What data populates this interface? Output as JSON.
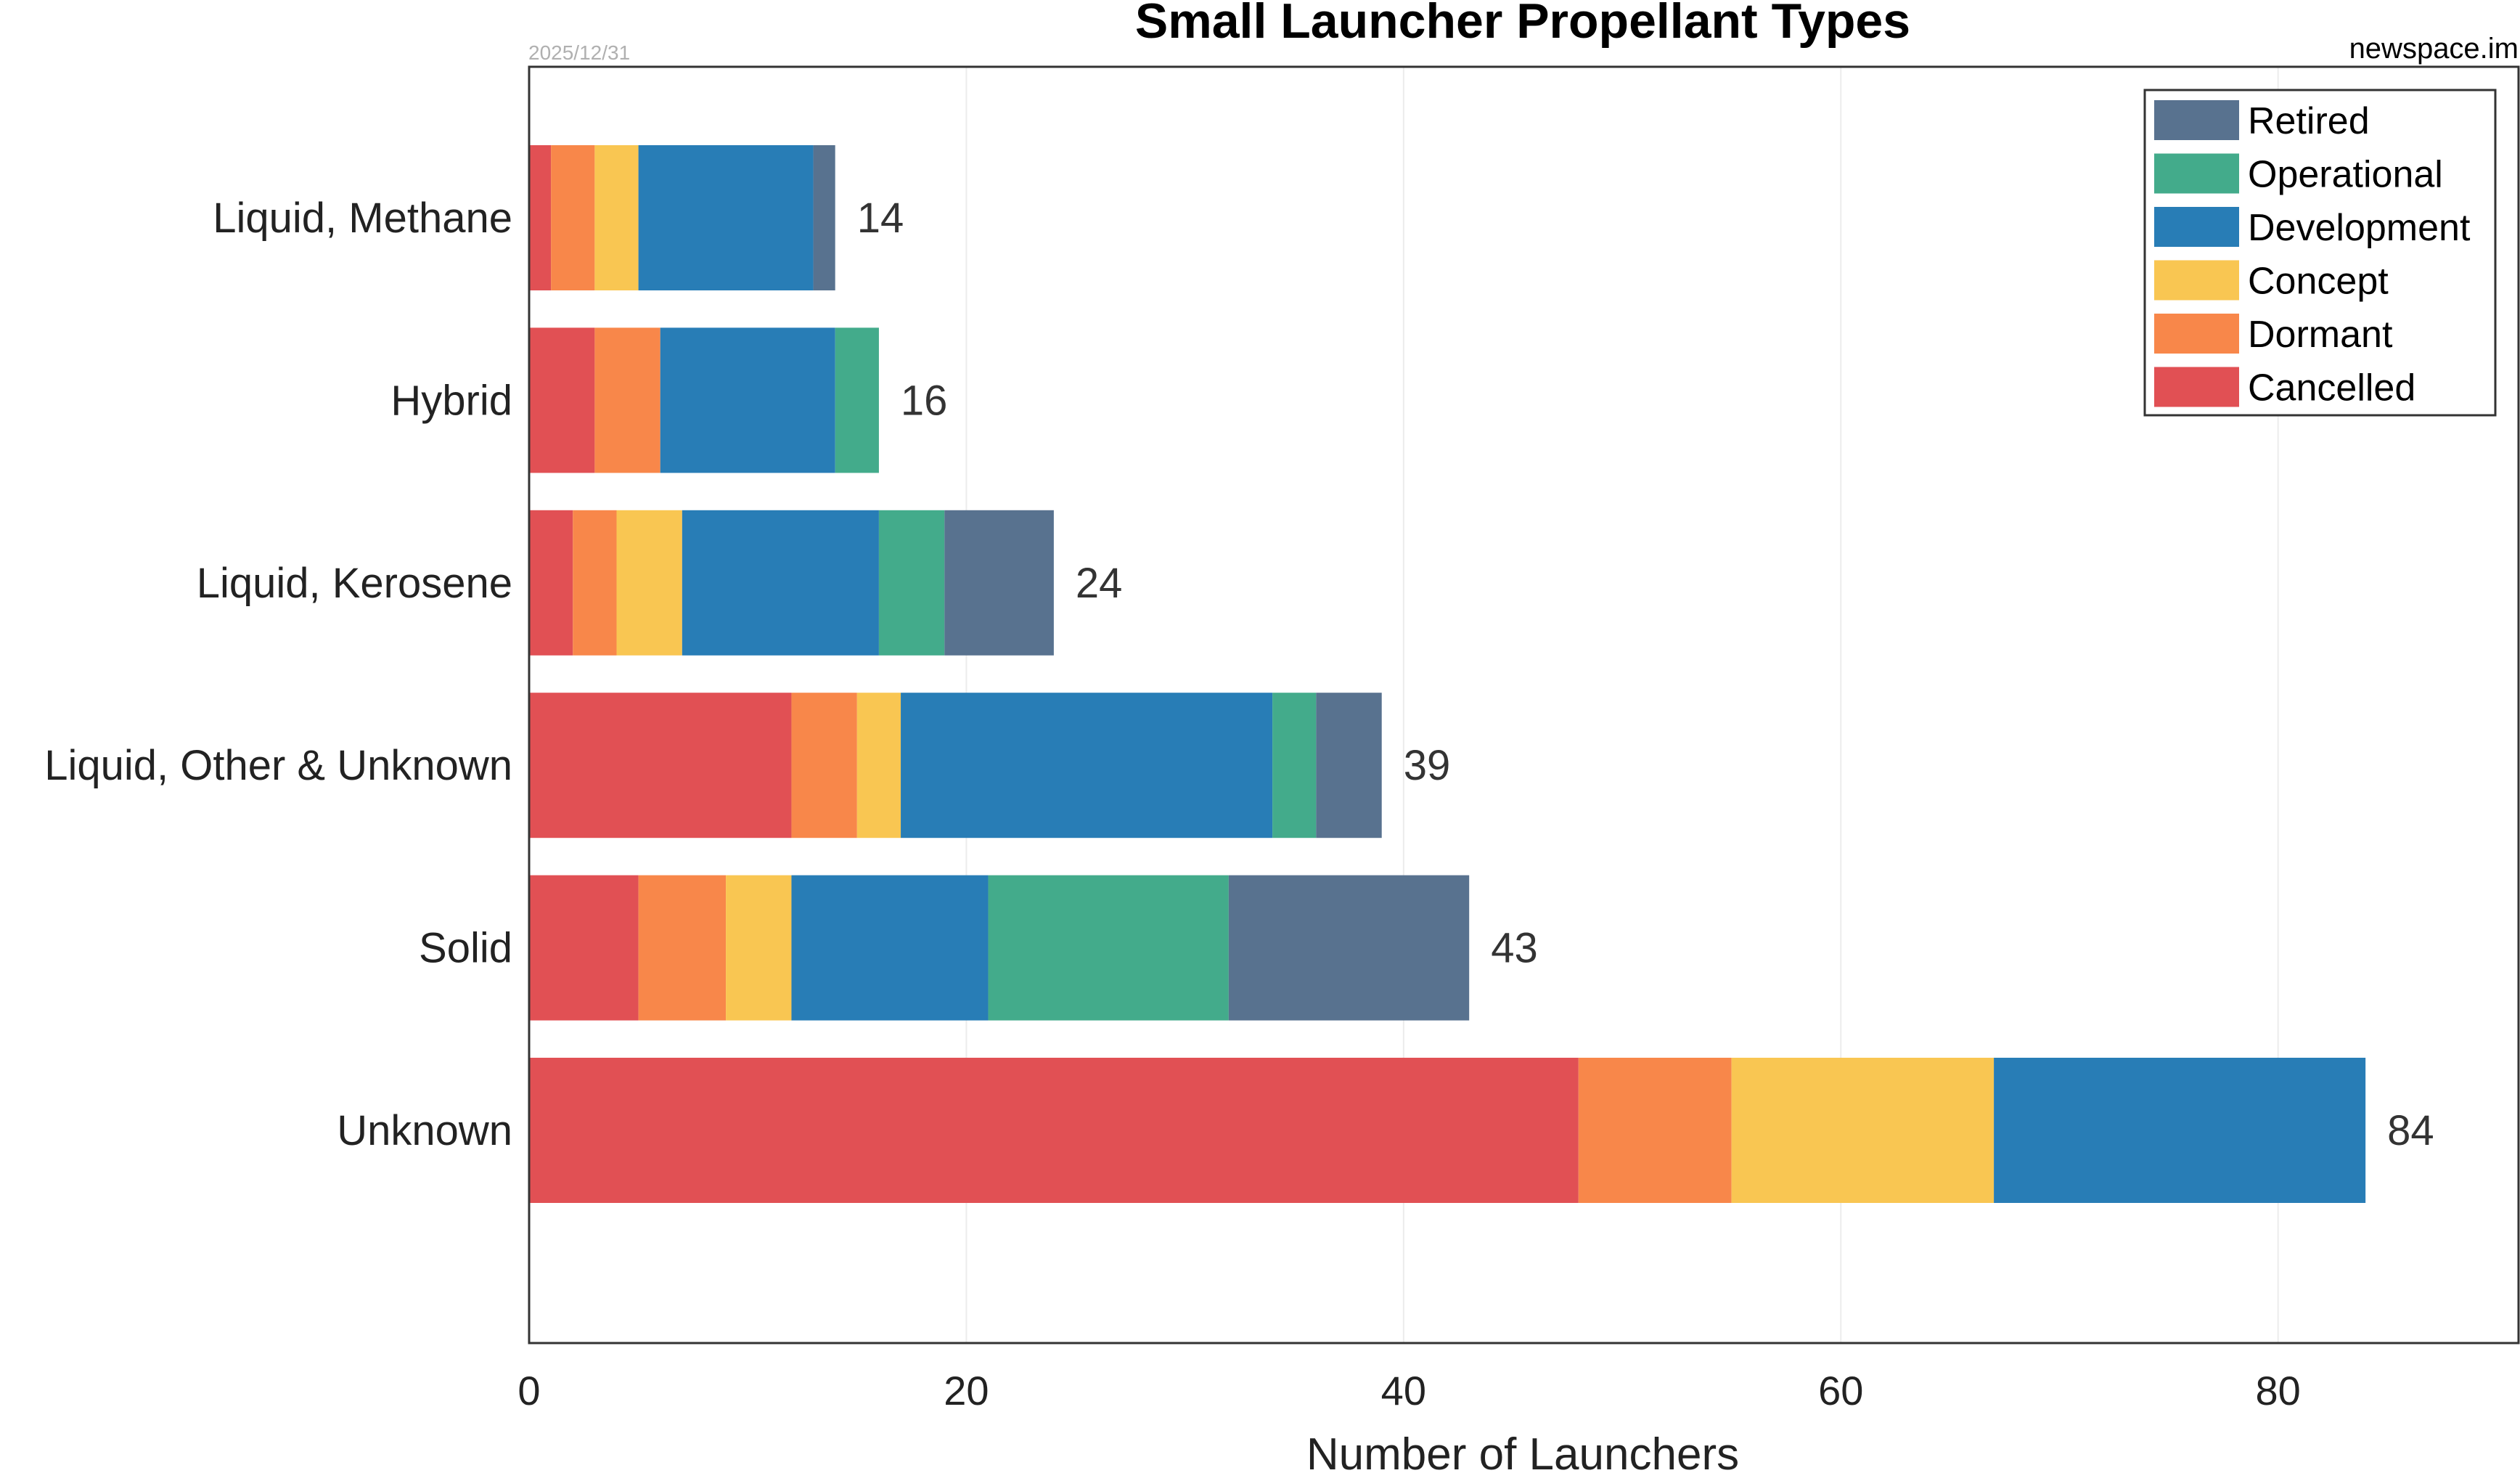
{
  "chart_data": {
    "type": "bar",
    "orientation": "horizontal",
    "stacked": true,
    "title": "Small Launcher Propellant Types",
    "date": "2025/12/31",
    "source": "newspace.im",
    "xlabel": "Number of Launchers",
    "ylabel": "",
    "xlim": [
      0,
      91
    ],
    "xticks": [
      "0",
      "20",
      "40",
      "60",
      "80"
    ],
    "xtick_values": [
      0,
      20,
      40,
      60,
      80
    ],
    "grid": true,
    "legend_position": "top-right",
    "categories": [
      "Liquid, Methane",
      "Hybrid",
      "Liquid, Kerosene",
      "Liquid, Other & Unknown",
      "Solid",
      "Unknown"
    ],
    "totals": [
      "14",
      "16",
      "24",
      "39",
      "43",
      "84"
    ],
    "series": [
      {
        "name": "Cancelled",
        "color": "#e15054",
        "values": [
          1,
          3,
          2,
          12,
          5,
          48
        ]
      },
      {
        "name": "Dormant",
        "color": "#f8874a",
        "values": [
          2,
          3,
          2,
          3,
          4,
          7
        ]
      },
      {
        "name": "Concept",
        "color": "#f9c652",
        "values": [
          2,
          0,
          3,
          2,
          3,
          12
        ]
      },
      {
        "name": "Development",
        "color": "#287db6",
        "values": [
          8,
          8,
          9,
          17,
          9,
          17
        ]
      },
      {
        "name": "Operational",
        "color": "#43ab8b",
        "values": [
          0,
          2,
          3,
          2,
          11,
          0
        ]
      },
      {
        "name": "Retired",
        "color": "#58728f",
        "values": [
          1,
          0,
          5,
          3,
          11,
          0
        ]
      }
    ],
    "legend_order": [
      "Retired",
      "Operational",
      "Development",
      "Concept",
      "Dormant",
      "Cancelled"
    ]
  }
}
